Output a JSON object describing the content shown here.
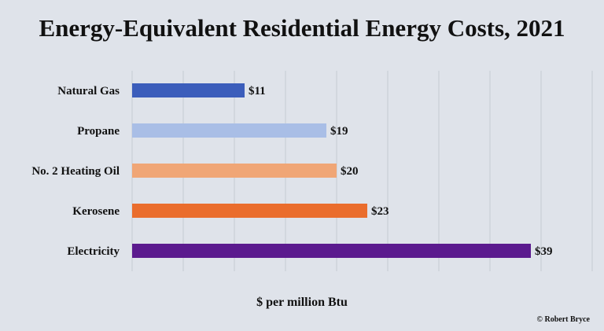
{
  "chart_data": {
    "type": "bar",
    "orientation": "horizontal",
    "title": "Energy-Equivalent Residential Energy Costs, 2021",
    "xlabel": "$ per million Btu",
    "ylabel": "",
    "categories": [
      "Natural Gas",
      "Propane",
      "No. 2 Heating Oil",
      "Kerosene",
      "Electricity"
    ],
    "values": [
      11,
      19,
      20,
      23,
      39
    ],
    "value_labels": [
      "$11",
      "$19",
      "$20",
      "$23",
      "$39"
    ],
    "colors": [
      "#3b5dbb",
      "#a9bee6",
      "#f0a676",
      "#ea6d2d",
      "#5b1a8e"
    ],
    "xlim": [
      0,
      45
    ],
    "grid": true
  },
  "credit": "© Robert Bryce"
}
